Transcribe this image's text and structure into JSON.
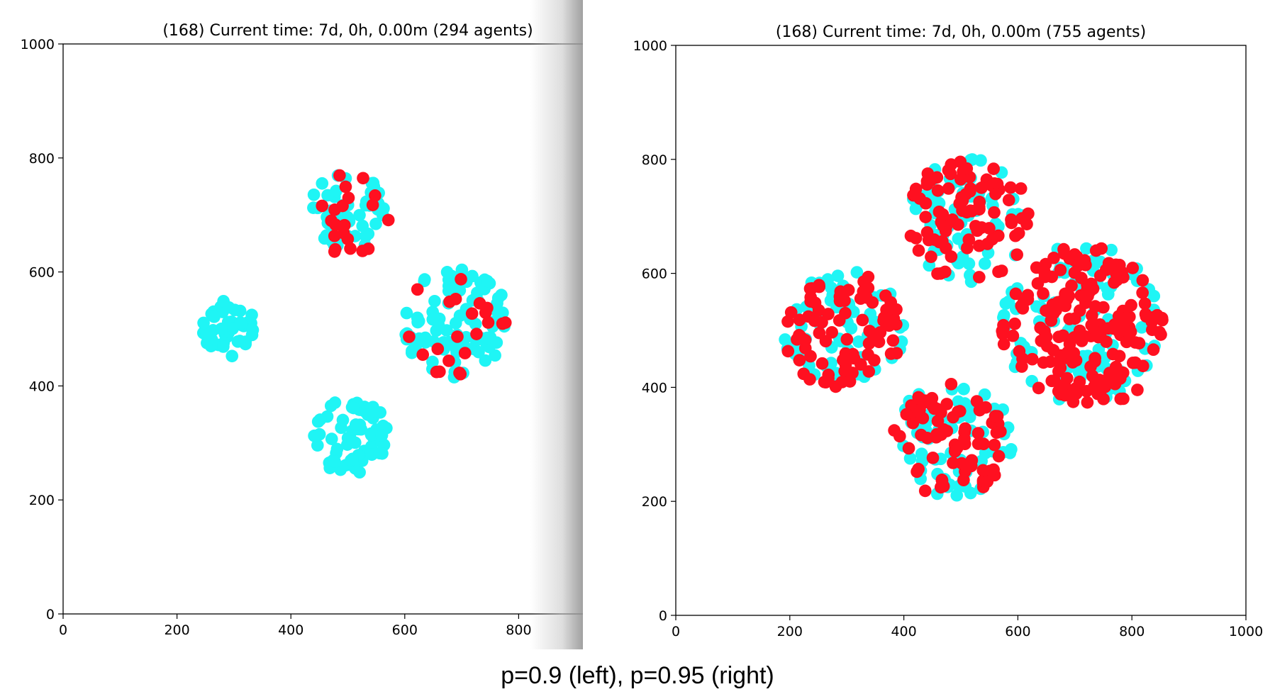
{
  "caption": "p=0.9 (left), p=0.95 (right)",
  "colors": {
    "susceptible": "#1ff5f5",
    "infected": "#ff1020",
    "axis": "#000000"
  },
  "chart_data": [
    {
      "type": "scatter",
      "title": "(168) Current time: 7d, 0h, 0.00m (294 agents)",
      "xlim": [
        0,
        1000
      ],
      "ylim": [
        0,
        1000
      ],
      "xticks": [
        0,
        200,
        400,
        600,
        800
      ],
      "yticks": [
        0,
        200,
        400,
        600,
        800,
        1000
      ],
      "clusters": [
        {
          "center": [
            500,
            700
          ],
          "radius": 72,
          "count": 70,
          "infected_fraction": 0.3
        },
        {
          "center": [
            690,
            510
          ],
          "radius": 95,
          "count": 110,
          "infected_fraction": 0.2
        },
        {
          "center": [
            290,
            500
          ],
          "radius": 50,
          "count": 45,
          "infected_fraction": 0.0
        },
        {
          "center": [
            505,
            310
          ],
          "radius": 68,
          "count": 69,
          "infected_fraction": 0.0
        }
      ]
    },
    {
      "type": "scatter",
      "title": "(168) Current time: 7d, 0h, 0.00m (755 agents)",
      "xlim": [
        0,
        1000
      ],
      "ylim": [
        0,
        1000
      ],
      "xticks": [
        0,
        200,
        400,
        600,
        800,
        1000
      ],
      "yticks": [
        0,
        200,
        400,
        600,
        800,
        1000
      ],
      "clusters": [
        {
          "center": [
            510,
            695
          ],
          "radius": 110,
          "count": 160,
          "infected_fraction": 0.55
        },
        {
          "center": [
            715,
            505
          ],
          "radius": 145,
          "count": 290,
          "infected_fraction": 0.68
        },
        {
          "center": [
            295,
            500
          ],
          "radius": 105,
          "count": 150,
          "infected_fraction": 0.55
        },
        {
          "center": [
            485,
            310
          ],
          "radius": 105,
          "count": 155,
          "infected_fraction": 0.5
        }
      ]
    }
  ]
}
